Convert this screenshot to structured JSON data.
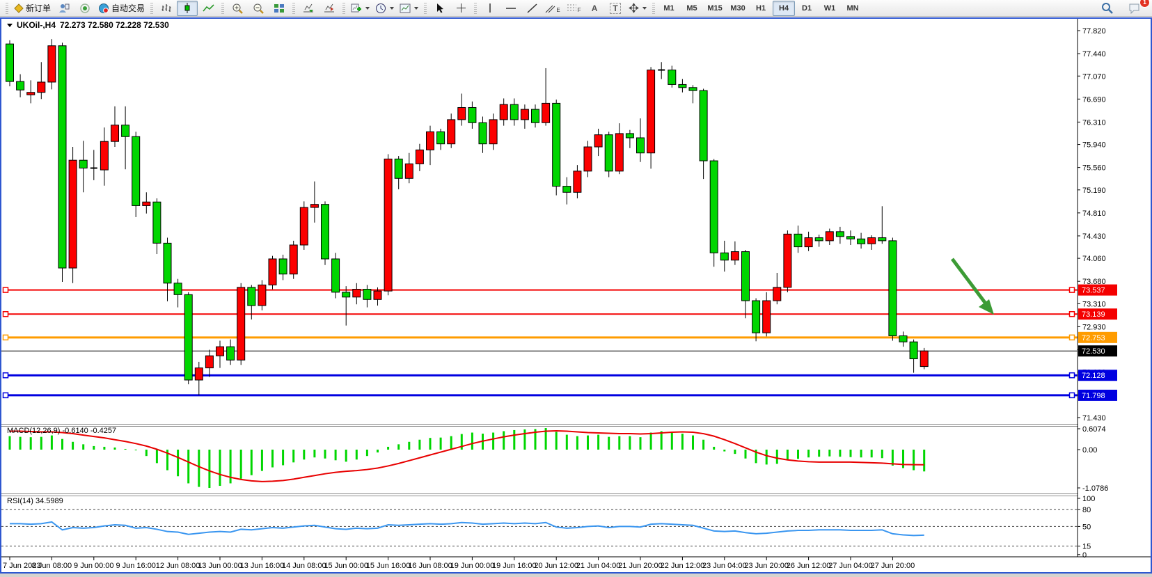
{
  "toolbar": {
    "new_order_label": "新订单",
    "auto_trading_label": "自动交易",
    "text_tool_label": "A",
    "label_tool_label": "T",
    "channel_sub": "E",
    "fib_sub": "F",
    "timeframes": [
      "M1",
      "M5",
      "M15",
      "M30",
      "H1",
      "H4",
      "D1",
      "W1",
      "MN"
    ],
    "active_timeframe": "H4",
    "notification_badge": "1"
  },
  "window": {
    "symbol_title": "UKOil-,H4",
    "ohlc_text": "72.273 72.580 72.228 72.530"
  },
  "indicators": {
    "macd_label": "MACD(12,26,9)",
    "macd_values": "-0.6140 -0.4257",
    "rsi_label": "RSI(14)",
    "rsi_value": "34.5989"
  },
  "price_axis": {
    "ticks": [
      "77.820",
      "77.440",
      "77.070",
      "76.690",
      "76.310",
      "75.940",
      "75.560",
      "75.190",
      "74.810",
      "74.430",
      "74.060",
      "73.680",
      "73.310",
      "72.930",
      "72.550",
      "72.180",
      "71.800",
      "71.430"
    ]
  },
  "hlines": [
    {
      "price": 73.537,
      "label": "73.537",
      "color": "#f40000",
      "width": 2,
      "markers": true
    },
    {
      "price": 73.139,
      "label": "73.139",
      "color": "#f40000",
      "width": 2,
      "markers": true
    },
    {
      "price": 72.753,
      "label": "72.753",
      "color": "#ff9c00",
      "width": 3,
      "markers": true
    },
    {
      "price": 72.53,
      "label": "72.530",
      "color": "#000000",
      "width": 1,
      "markers": false
    },
    {
      "price": 72.128,
      "label": "72.128",
      "color": "#0000e0",
      "width": 3,
      "markers": true
    },
    {
      "price": 71.798,
      "label": "71.798",
      "color": "#0000e0",
      "width": 3,
      "markers": true
    }
  ],
  "time_axis": {
    "labels": [
      "7 Jun 2023",
      "8 Jun 08:00",
      "9 Jun 00:00",
      "9 Jun 16:00",
      "12 Jun 08:00",
      "13 Jun 00:00",
      "13 Jun 16:00",
      "14 Jun 08:00",
      "15 Jun 00:00",
      "15 Jun 16:00",
      "16 Jun 08:00",
      "19 Jun 00:00",
      "19 Jun 16:00",
      "20 Jun 12:00",
      "21 Jun 04:00",
      "21 Jun 20:00",
      "22 Jun 12:00",
      "23 Jun 04:00",
      "23 Jun 20:00",
      "26 Jun 12:00",
      "27 Jun 04:00",
      "27 Jun 20:00"
    ]
  },
  "macd_axis": [
    "0.6074",
    "0.00",
    "-1.0786"
  ],
  "rsi_axis": [
    "100",
    "80",
    "50",
    "15",
    "0"
  ],
  "annotation_arrow": {
    "color": "#3c9b35"
  },
  "chart_data": {
    "type": "candlestick",
    "symbol": "UKOil-",
    "timeframe": "H4",
    "title": "UKOil-,H4 72.273 72.580 72.228 72.530",
    "bull_color": "#fc0000",
    "bear_color": "#00d600",
    "ylim": [
      71.43,
      77.82
    ],
    "candles": [
      [
        77.6,
        77.66,
        76.9,
        76.98
      ],
      [
        76.98,
        77.1,
        76.72,
        76.84
      ],
      [
        76.76,
        77.0,
        76.62,
        76.8
      ],
      [
        76.8,
        77.3,
        76.69,
        76.97
      ],
      [
        76.97,
        77.68,
        76.85,
        77.57
      ],
      [
        77.57,
        77.62,
        73.67,
        73.9
      ],
      [
        73.9,
        75.9,
        73.65,
        75.68
      ],
      [
        75.68,
        76.0,
        75.15,
        75.55
      ],
      [
        75.55,
        75.85,
        75.35,
        75.52
      ],
      [
        75.52,
        76.22,
        75.26,
        75.99
      ],
      [
        75.99,
        76.57,
        75.9,
        76.26
      ],
      [
        76.26,
        76.57,
        75.53,
        76.07
      ],
      [
        76.07,
        76.15,
        74.74,
        74.93
      ],
      [
        74.93,
        75.15,
        74.8,
        74.99
      ],
      [
        74.99,
        75.05,
        74.13,
        74.31
      ],
      [
        74.31,
        74.4,
        73.35,
        73.65
      ],
      [
        73.65,
        73.72,
        73.25,
        73.46
      ],
      [
        73.46,
        73.5,
        71.98,
        72.05
      ],
      [
        72.05,
        72.35,
        71.8,
        72.25
      ],
      [
        72.25,
        72.55,
        72.1,
        72.45
      ],
      [
        72.45,
        72.7,
        72.25,
        72.6
      ],
      [
        72.6,
        72.72,
        72.3,
        72.38
      ],
      [
        72.38,
        73.65,
        72.3,
        73.58
      ],
      [
        73.58,
        73.62,
        73.05,
        73.28
      ],
      [
        73.28,
        73.7,
        73.2,
        73.62
      ],
      [
        73.62,
        74.1,
        73.55,
        74.05
      ],
      [
        74.05,
        74.12,
        73.7,
        73.8
      ],
      [
        73.8,
        74.35,
        73.72,
        74.28
      ],
      [
        74.28,
        75.0,
        74.2,
        74.9
      ],
      [
        74.9,
        75.33,
        74.65,
        74.95
      ],
      [
        74.95,
        75.0,
        73.95,
        74.05
      ],
      [
        74.05,
        74.15,
        73.4,
        73.5
      ],
      [
        73.5,
        73.6,
        72.95,
        73.42
      ],
      [
        73.42,
        73.65,
        73.3,
        73.55
      ],
      [
        73.55,
        73.62,
        73.25,
        73.38
      ],
      [
        73.38,
        73.58,
        73.28,
        73.52
      ],
      [
        73.52,
        75.78,
        73.45,
        75.7
      ],
      [
        75.7,
        75.75,
        75.2,
        75.38
      ],
      [
        75.38,
        75.8,
        75.3,
        75.62
      ],
      [
        75.62,
        75.95,
        75.5,
        75.85
      ],
      [
        75.85,
        76.25,
        75.6,
        76.15
      ],
      [
        76.15,
        76.2,
        75.85,
        75.95
      ],
      [
        75.95,
        76.45,
        75.88,
        76.35
      ],
      [
        76.35,
        76.78,
        76.25,
        76.55
      ],
      [
        76.55,
        76.65,
        76.2,
        76.3
      ],
      [
        76.3,
        76.4,
        75.8,
        75.95
      ],
      [
        75.95,
        76.45,
        75.85,
        76.35
      ],
      [
        76.35,
        76.7,
        76.25,
        76.6
      ],
      [
        76.6,
        76.7,
        76.25,
        76.35
      ],
      [
        76.35,
        76.6,
        76.2,
        76.52
      ],
      [
        76.52,
        76.6,
        76.22,
        76.3
      ],
      [
        76.3,
        77.2,
        76.25,
        76.62
      ],
      [
        76.62,
        76.68,
        75.1,
        75.25
      ],
      [
        75.25,
        75.4,
        74.95,
        75.15
      ],
      [
        75.15,
        75.6,
        75.05,
        75.5
      ],
      [
        75.5,
        76.0,
        75.4,
        75.9
      ],
      [
        75.9,
        76.2,
        75.75,
        76.1
      ],
      [
        76.1,
        76.15,
        75.4,
        75.5
      ],
      [
        75.5,
        76.29,
        75.45,
        76.12
      ],
      [
        76.12,
        76.18,
        75.88,
        76.05
      ],
      [
        76.05,
        76.37,
        75.65,
        75.8
      ],
      [
        75.8,
        77.22,
        75.54,
        77.17
      ],
      [
        77.15,
        77.3,
        77.02,
        77.17
      ],
      [
        77.17,
        77.24,
        76.88,
        76.93
      ],
      [
        76.93,
        77.02,
        76.8,
        76.88
      ],
      [
        76.88,
        76.92,
        76.62,
        76.83
      ],
      [
        76.83,
        76.86,
        75.37,
        75.67
      ],
      [
        75.67,
        75.7,
        73.92,
        74.15
      ],
      [
        74.15,
        74.35,
        73.84,
        74.03
      ],
      [
        74.03,
        74.34,
        73.95,
        74.17
      ],
      [
        74.17,
        74.2,
        73.07,
        73.36
      ],
      [
        73.36,
        73.4,
        72.69,
        72.83
      ],
      [
        72.83,
        73.5,
        72.77,
        73.36
      ],
      [
        73.36,
        73.82,
        73.3,
        73.58
      ],
      [
        73.58,
        74.52,
        73.5,
        74.46
      ],
      [
        74.46,
        74.6,
        74.15,
        74.25
      ],
      [
        74.25,
        74.5,
        74.18,
        74.4
      ],
      [
        74.4,
        74.45,
        74.25,
        74.35
      ],
      [
        74.35,
        74.55,
        74.28,
        74.5
      ],
      [
        74.5,
        74.58,
        74.3,
        74.42
      ],
      [
        74.42,
        74.52,
        74.28,
        74.38
      ],
      [
        74.38,
        74.48,
        74.22,
        74.3
      ],
      [
        74.3,
        74.44,
        74.2,
        74.4
      ],
      [
        74.4,
        74.92,
        74.3,
        74.35
      ],
      [
        74.35,
        74.4,
        72.7,
        72.78
      ],
      [
        72.78,
        72.85,
        72.6,
        72.68
      ],
      [
        72.68,
        72.72,
        72.17,
        72.4
      ],
      [
        72.273,
        72.58,
        72.228,
        72.53
      ]
    ],
    "macd_hist": [
      0.38,
      0.36,
      0.35,
      0.36,
      0.4,
      0.3,
      0.22,
      0.15,
      0.1,
      0.08,
      0.06,
      0.02,
      -0.02,
      -0.18,
      -0.38,
      -0.58,
      -0.75,
      -0.95,
      -1.05,
      -1.0786,
      -1.02,
      -0.95,
      -0.82,
      -0.72,
      -0.6,
      -0.5,
      -0.44,
      -0.36,
      -0.28,
      -0.22,
      -0.25,
      -0.3,
      -0.34,
      -0.28,
      -0.18,
      -0.08,
      0.08,
      0.15,
      0.22,
      0.28,
      0.33,
      0.34,
      0.38,
      0.44,
      0.48,
      0.45,
      0.48,
      0.52,
      0.55,
      0.57,
      0.58,
      0.6074,
      0.5,
      0.42,
      0.38,
      0.4,
      0.42,
      0.36,
      0.38,
      0.38,
      0.35,
      0.48,
      0.52,
      0.5,
      0.45,
      0.4,
      0.28,
      0.08,
      -0.05,
      -0.12,
      -0.25,
      -0.38,
      -0.42,
      -0.4,
      -0.3,
      -0.26,
      -0.22,
      -0.2,
      -0.19,
      -0.2,
      -0.21,
      -0.22,
      -0.22,
      -0.24,
      -0.45,
      -0.52,
      -0.58,
      -0.614
    ],
    "macd_signal": [
      0.52,
      0.52,
      0.51,
      0.5,
      0.5,
      0.48,
      0.45,
      0.41,
      0.37,
      0.33,
      0.28,
      0.23,
      0.17,
      0.1,
      0.01,
      -0.1,
      -0.22,
      -0.35,
      -0.48,
      -0.6,
      -0.7,
      -0.78,
      -0.84,
      -0.88,
      -0.9,
      -0.89,
      -0.87,
      -0.83,
      -0.78,
      -0.73,
      -0.68,
      -0.64,
      -0.61,
      -0.59,
      -0.56,
      -0.52,
      -0.46,
      -0.39,
      -0.31,
      -0.23,
      -0.15,
      -0.07,
      0.01,
      0.09,
      0.17,
      0.24,
      0.3,
      0.36,
      0.41,
      0.45,
      0.49,
      0.52,
      0.53,
      0.52,
      0.5,
      0.48,
      0.47,
      0.46,
      0.45,
      0.45,
      0.44,
      0.45,
      0.47,
      0.49,
      0.5,
      0.49,
      0.45,
      0.38,
      0.28,
      0.17,
      0.05,
      -0.07,
      -0.17,
      -0.24,
      -0.29,
      -0.32,
      -0.34,
      -0.35,
      -0.35,
      -0.35,
      -0.35,
      -0.36,
      -0.37,
      -0.38,
      -0.4,
      -0.42,
      -0.425,
      -0.4257
    ],
    "rsi": [
      55,
      55,
      54,
      55,
      58,
      44,
      48,
      47,
      48,
      51,
      53,
      52,
      47,
      48,
      45,
      41,
      40,
      36,
      38,
      40,
      41,
      40,
      45,
      44,
      46,
      48,
      47,
      49,
      51,
      52,
      49,
      46,
      45,
      47,
      46,
      47,
      53,
      52,
      53,
      54,
      55,
      54,
      55,
      57,
      56,
      54,
      55,
      56,
      55,
      56,
      55,
      57,
      49,
      47,
      48,
      50,
      51,
      48,
      50,
      50,
      49,
      54,
      55,
      54,
      53,
      52,
      47,
      42,
      41,
      42,
      39,
      37,
      38,
      40,
      42,
      43,
      43,
      44,
      44,
      44,
      43,
      43,
      43,
      44,
      37,
      35,
      34,
      34.6
    ],
    "rsi_levels": [
      80,
      50,
      15
    ]
  }
}
